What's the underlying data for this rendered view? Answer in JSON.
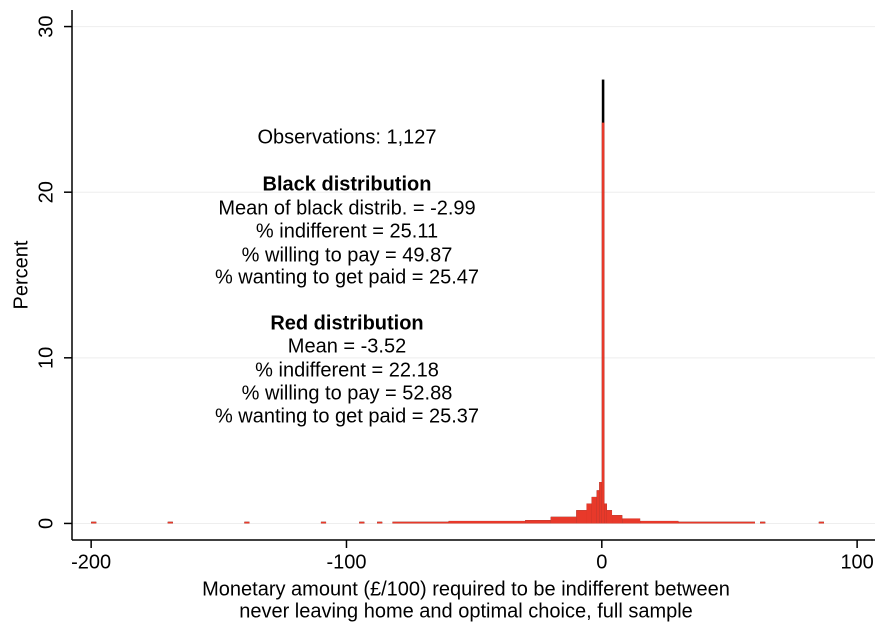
{
  "chart_data": {
    "type": "histogram",
    "xlabel": [
      "Monetary amount (£/100) required to be indifferent between",
      "never leaving home and optimal choice, full sample"
    ],
    "ylabel": "Percent",
    "bins": [
      -200,
      -198,
      -170,
      -168,
      -140,
      -138,
      -110,
      -108,
      -95,
      -93,
      -88,
      -86,
      -82,
      -60,
      -30,
      -20,
      -10,
      -6,
      -4,
      -2,
      -1,
      0,
      1,
      2,
      4,
      8,
      15,
      30,
      60,
      62,
      64,
      85,
      87
    ],
    "series": [
      {
        "name": "Black distribution",
        "color": "#000000",
        "values": [
          0.1,
          0,
          0.1,
          0,
          0.1,
          0,
          0.1,
          0,
          0.1,
          0,
          0.1,
          0,
          0.1,
          0.15,
          0.2,
          0.4,
          0.8,
          1.2,
          1.6,
          2.0,
          2.5,
          26.8,
          1.2,
          0.8,
          0.5,
          0.3,
          0.15,
          0.1,
          0,
          0.1,
          0,
          0.1
        ]
      },
      {
        "name": "Red distribution",
        "color": "#e8392a",
        "values": [
          0.1,
          0,
          0.1,
          0,
          0.1,
          0,
          0.1,
          0,
          0.1,
          0,
          0.1,
          0,
          0.1,
          0.15,
          0.2,
          0.4,
          0.8,
          1.2,
          1.6,
          2.0,
          2.5,
          24.2,
          1.2,
          0.8,
          0.5,
          0.3,
          0.15,
          0.1,
          0,
          0.1,
          0,
          0.1
        ]
      }
    ],
    "annotations": [
      {
        "text": "Observations: 1,127",
        "bold": false
      },
      {
        "text": "Black distribution",
        "bold": true
      },
      {
        "text": "Mean of black distrib. = -2.99",
        "bold": false
      },
      {
        "text": "% indifferent = 25.11",
        "bold": false
      },
      {
        "text": "% willing to pay = 49.87",
        "bold": false
      },
      {
        "text": "% wanting to get paid = 25.47",
        "bold": false
      },
      {
        "text": "Red distribution",
        "bold": true
      },
      {
        "text": "Mean = -3.52",
        "bold": false
      },
      {
        "text": "% indifferent = 22.18",
        "bold": false
      },
      {
        "text": "% willing to pay = 52.88",
        "bold": false
      },
      {
        "text": "% wanting to get paid = 25.37",
        "bold": false
      }
    ],
    "xlim": [
      -207.5,
      107
    ],
    "ylim": [
      -1,
      31
    ],
    "xticks": [
      -200,
      -100,
      0,
      100
    ],
    "yticks": [
      0,
      10,
      20,
      30
    ],
    "grid": true
  }
}
